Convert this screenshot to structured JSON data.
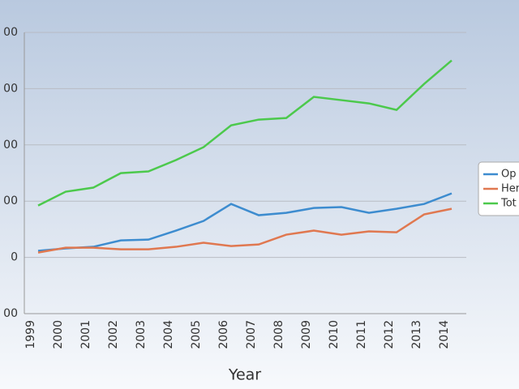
{
  "chart_data": {
    "type": "line",
    "x_label": "Year",
    "categories": [
      "1999",
      "2000",
      "2001",
      "2002",
      "2003",
      "2004",
      "2005",
      "2006",
      "2007",
      "2008",
      "2009",
      "2010",
      "2011",
      "2012",
      "2013",
      "2014"
    ],
    "series": [
      {
        "name": "Op",
        "color": "#3d8ccf",
        "values": [
          58,
          80,
          94,
          151,
          158,
          238,
          324,
          475,
          375,
          396,
          439,
          447,
          396,
          432,
          475,
          569
        ]
      },
      {
        "name": "Her",
        "color": "#e07850",
        "values": [
          43,
          86,
          86,
          72,
          72,
          94,
          130,
          101,
          115,
          202,
          238,
          202,
          231,
          223,
          382,
          432
        ]
      },
      {
        "name": "Tot",
        "color": "#4cc94c",
        "values": [
          461,
          584,
          620,
          749,
          764,
          865,
          980,
          1174,
          1225,
          1239,
          1427,
          1398,
          1369,
          1311,
          1542,
          1751
        ]
      }
    ],
    "ylim": [
      -500,
      2000
    ],
    "yticks": [
      {
        "value": -500,
        "label": "00"
      },
      0,
      {
        "value": 500,
        "label": "00"
      },
      {
        "value": 1000,
        "label": "00"
      },
      {
        "value": 1500,
        "label": "00"
      },
      {
        "value": 2000,
        "label": "00"
      }
    ],
    "grid": true,
    "legend": "right"
  }
}
